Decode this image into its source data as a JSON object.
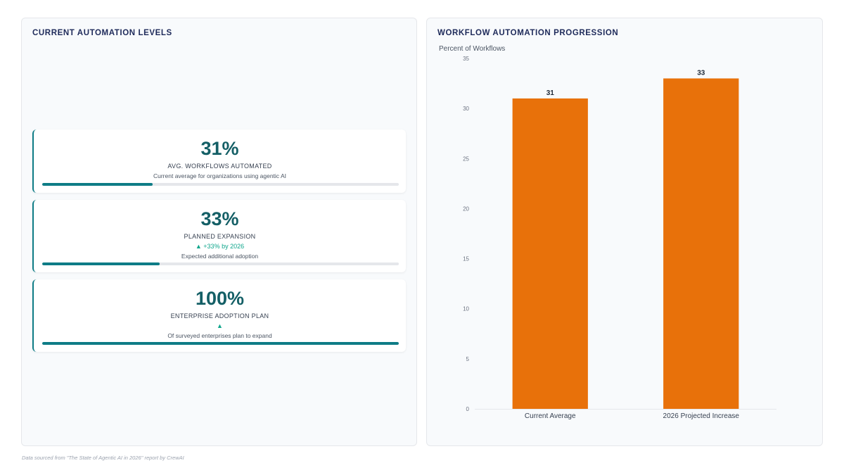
{
  "left_panel": {
    "title": "CURRENT AUTOMATION LEVELS",
    "cards": [
      {
        "value": "31%",
        "label": "AVG. WORKFLOWS AUTOMATED",
        "change": "",
        "description": "Current average for organizations using agentic AI",
        "progress_percent": 31
      },
      {
        "value": "33%",
        "label": "PLANNED EXPANSION",
        "change": "▲ +33% by 2026",
        "description": "Expected additional adoption",
        "progress_percent": 33
      },
      {
        "value": "100%",
        "label": "ENTERPRISE ADOPTION PLAN",
        "change": "▲",
        "description": "Of surveyed enterprises plan to expand",
        "progress_percent": 100
      }
    ]
  },
  "right_panel": {
    "title": "WORKFLOW AUTOMATION PROGRESSION"
  },
  "chart_data": {
    "type": "bar",
    "title": "WORKFLOW AUTOMATION PROGRESSION",
    "ylabel": "Percent of Workflows",
    "xlabel": "",
    "categories": [
      "Current Average",
      "2026 Projected Increase"
    ],
    "values": [
      31,
      33
    ],
    "ylim": [
      0,
      35
    ],
    "yticks": [
      0,
      5,
      10,
      15,
      20,
      25,
      30,
      35
    ],
    "bar_color": "#e8710a",
    "data_labels": true,
    "grid": false,
    "legend": "none"
  },
  "colors": {
    "accent": "#0e7c86",
    "value_text": "#145f66",
    "positive_change": "#0fa68c",
    "bar": "#e8710a",
    "title": "#1e2a5a"
  },
  "footnote": "Data sourced from \"The State of Agentic AI in 2026\" report by CrewAI"
}
